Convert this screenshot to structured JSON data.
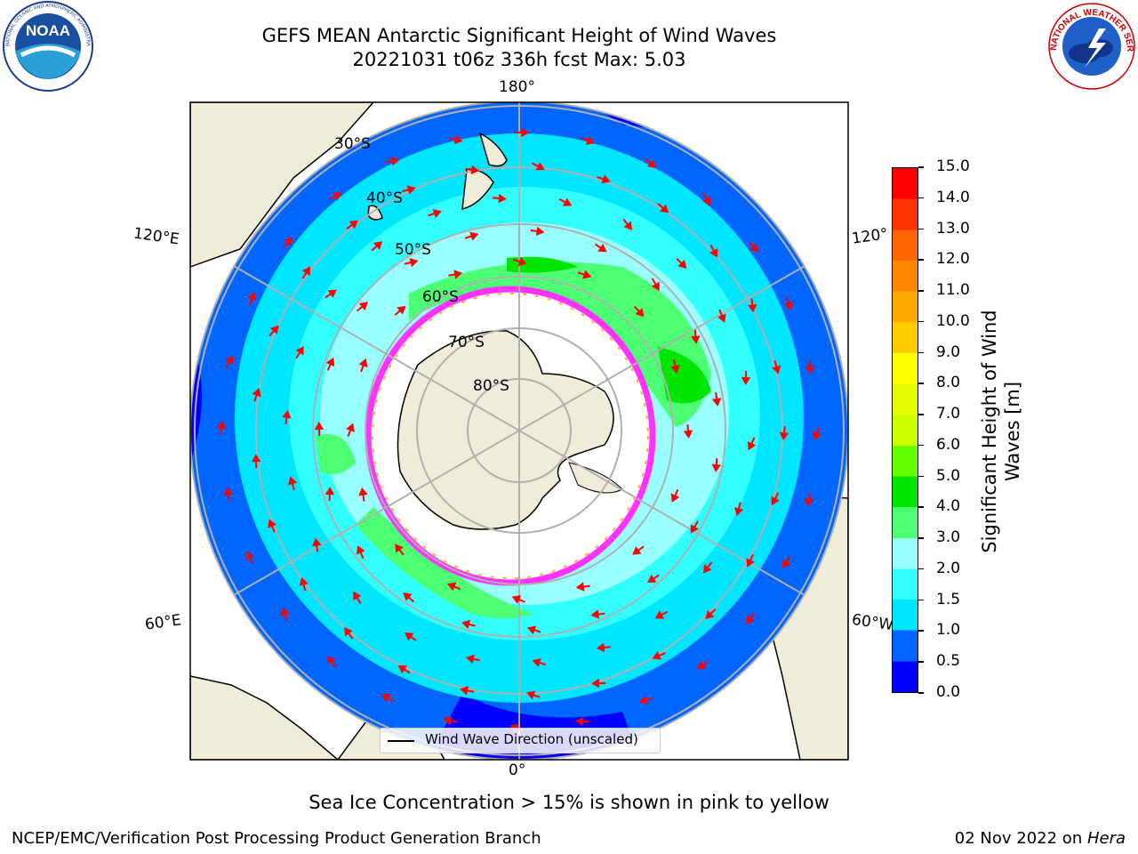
{
  "header": {
    "title_line1": "GEFS MEAN Antarctic Significant Height of Wind Waves",
    "title_line2": "20221031 t06z 336h fcst   Max: 5.03"
  },
  "logos": {
    "noaa_text": "NOAA",
    "noaa_ring_text": "NATIONAL OCEANIC AND ATMOSPHERIC ADMINISTRATION · U.S. DEPARTMENT OF COMMERCE",
    "nws_ring_text": "NATIONAL WEATHER SERVICE"
  },
  "map": {
    "projection": "south-polar-stereographic",
    "longitude_labels": {
      "top": "180°",
      "bottom": "0°",
      "upper_left": "120°E",
      "upper_right": "120°",
      "lower_left": "60°E",
      "lower_right": "60°W"
    },
    "latitude_labels": [
      "30°S",
      "40°S",
      "50°S",
      "60°S",
      "70°S",
      "80°S"
    ],
    "legend": {
      "label": "Wind Wave Direction (unscaled)"
    },
    "arrow_color": "#ff0000",
    "land_color": "#efedda",
    "ice_colors": [
      "#ff33ff",
      "#ff66cc",
      "#ffaa33",
      "#ffee66"
    ]
  },
  "colorbar": {
    "label_line1": "Significant Height of Wind",
    "label_line2": "Waves [m]",
    "ticks": [
      "0.0",
      "0.5",
      "1.0",
      "1.5",
      "2.0",
      "3.0",
      "4.0",
      "5.0",
      "6.0",
      "7.0",
      "8.0",
      "9.0",
      "10.0",
      "11.0",
      "12.0",
      "13.0",
      "14.0",
      "15.0"
    ],
    "colors": [
      "#0000ff",
      "#0066ff",
      "#00e6ff",
      "#33ffff",
      "#99ffff",
      "#4dff73",
      "#00e600",
      "#66ff00",
      "#ccff00",
      "#e6ff00",
      "#ffff00",
      "#ffcc00",
      "#ffaa00",
      "#ff8800",
      "#ff6600",
      "#ff3300",
      "#ff0000"
    ]
  },
  "footer": {
    "note": "Sea Ice Concentration > 15% is shown in pink to yellow",
    "left": "NCEP/EMC/Verification Post Processing Product Generation Branch",
    "right_date": "02 Nov 2022 on ",
    "right_host": "Hera"
  }
}
